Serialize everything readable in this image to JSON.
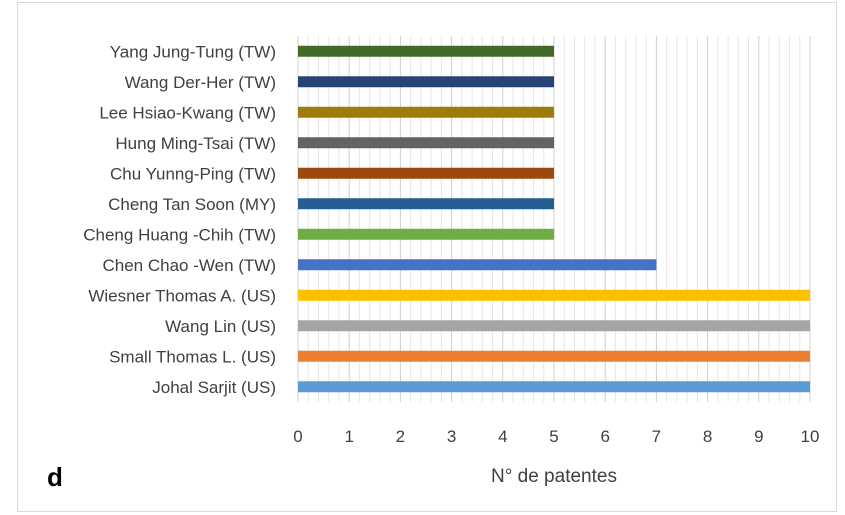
{
  "panel_label": "d",
  "chart_data": {
    "type": "bar",
    "orientation": "horizontal",
    "title": "",
    "xlabel": "N° de patentes",
    "ylabel": "",
    "xlim": [
      0,
      10
    ],
    "x_ticks": [
      "0",
      "1",
      "2",
      "3",
      "4",
      "5",
      "6",
      "7",
      "8",
      "9",
      "10"
    ],
    "grid": "vertical minor gridlines every 0.2",
    "legend": "none",
    "categories": [
      "Yang Jung-Tung (TW)",
      "Wang Der-Her (TW)",
      "Lee Hsiao-Kwang (TW)",
      "Hung Ming-Tsai (TW)",
      "Chu Yunng-Ping (TW)",
      "Cheng Tan Soon (MY)",
      "Cheng Huang -Chih (TW)",
      "Chen Chao -Wen (TW)",
      "Wiesner Thomas A. (US)",
      "Wang Lin (US)",
      "Small Thomas L. (US)",
      "Johal Sarjit (US)"
    ],
    "values": [
      5,
      5,
      5,
      5,
      5,
      5,
      5,
      7,
      10,
      10,
      10,
      10
    ],
    "colors": [
      "#43682b",
      "#264478",
      "#9e7c0c",
      "#636363",
      "#9e480e",
      "#255e91",
      "#70ad47",
      "#4472c4",
      "#ffc000",
      "#a5a5a5",
      "#ed7d31",
      "#5b9bd5"
    ]
  }
}
